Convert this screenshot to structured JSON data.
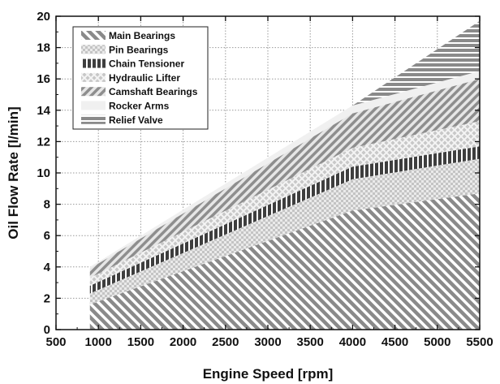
{
  "chart_data": {
    "type": "area",
    "stacked": true,
    "xlabel": "Engine Speed [rpm]",
    "ylabel": "Oil Flow Rate [l/min]",
    "xlim": [
      500,
      5500
    ],
    "ylim": [
      0,
      20
    ],
    "xticks": [
      500,
      1000,
      1500,
      2000,
      2500,
      3000,
      3500,
      4000,
      4500,
      5000,
      5500
    ],
    "yticks": [
      0,
      2,
      4,
      6,
      8,
      10,
      12,
      14,
      16,
      18,
      20
    ],
    "grid": true,
    "legend_position": "top-left",
    "x": [
      900,
      4000,
      5500
    ],
    "series": [
      {
        "name": "Main Bearings",
        "values": [
          1.6,
          7.6,
          8.7
        ],
        "pattern": "diag-right",
        "color": "#8a8a8a"
      },
      {
        "name": "Pin Bearings",
        "values": [
          0.7,
          2.0,
          2.2
        ],
        "pattern": "dots",
        "color": "#cfcfcf"
      },
      {
        "name": "Chain Tensioner",
        "values": [
          0.5,
          0.8,
          0.8
        ],
        "pattern": "vertical",
        "color": "#444444"
      },
      {
        "name": "Hydraulic Lifter",
        "values": [
          0.5,
          1.2,
          1.6
        ],
        "pattern": "cross",
        "color": "#d9d9d9"
      },
      {
        "name": "Camshaft Bearings",
        "values": [
          0.6,
          2.2,
          2.7
        ],
        "pattern": "diag-left",
        "color": "#8a8a8a"
      },
      {
        "name": "Rocker Arms",
        "values": [
          0.1,
          0.5,
          0.5
        ],
        "pattern": "solid",
        "color": "#eeeeee"
      },
      {
        "name": "Relief Valve",
        "values": [
          0.0,
          0.0,
          3.2
        ],
        "pattern": "horizontal",
        "color": "#888888"
      }
    ]
  }
}
